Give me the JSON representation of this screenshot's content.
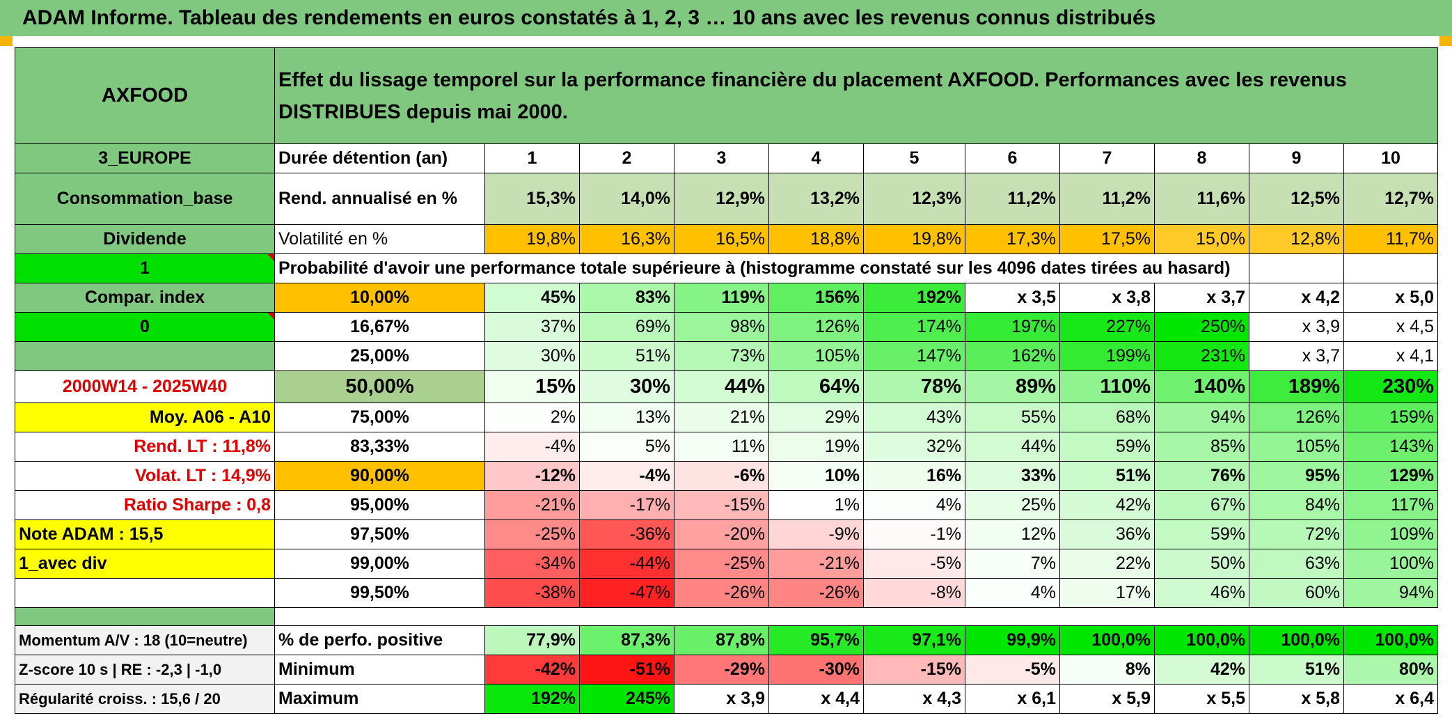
{
  "title": "ADAM Informe. Tableau des rendements en euros constatés à 1, 2, 3 … 10 ans avec les revenus connus distribués",
  "colors": {
    "header_green": "#80c880",
    "bright_green": "#00e000",
    "yellow": "#ffff00",
    "orange": "#ffc000",
    "pale_green": "#c6e0b4",
    "red_text": "#e00000"
  },
  "header": {
    "name": "AXFOOD",
    "description": "Effet du lissage temporel sur la performance financière du placement AXFOOD. Performances avec les revenus DISTRIBUES depuis mai 2000."
  },
  "left": {
    "zone": "3_EUROPE",
    "sector": "Consommation_base",
    "div_type": "Dividende",
    "flag1": "1",
    "compar": "Compar. index",
    "flag0": "0",
    "period": "2000W14 - 2025W40",
    "moy": "Moy. A06 - A10",
    "rend_lt": "Rend. LT :    11,8%",
    "volat_lt": "Volat. LT :    14,9%",
    "sharpe": "Ratio Sharpe :    0,8",
    "note": "Note ADAM : 15,5",
    "avec_div": "1_avec div",
    "momentum": "Momentum A/V : 18 (10=neutre)",
    "zscore": "Z-score 10 s | RE : -2,3 | -1,0",
    "regularite": "Régularité croiss. : 15,6 / 20"
  },
  "labels": {
    "duree": "Durée détention (an)",
    "rend": "Rend. annualisé en %",
    "volat": "Volatilité en %",
    "proba": "Probabilité d'avoir une performance totale supérieure à (histogramme constaté sur les 4096 dates tirées au hasard)",
    "positive": "% de perfo. positive",
    "minimum": "Minimum",
    "maximum": "Maximum"
  },
  "years": [
    "1",
    "2",
    "3",
    "4",
    "5",
    "6",
    "7",
    "8",
    "9",
    "10"
  ],
  "rend": [
    "15,3%",
    "14,0%",
    "12,9%",
    "13,2%",
    "12,3%",
    "11,2%",
    "11,2%",
    "11,6%",
    "12,5%",
    "12,7%"
  ],
  "volat": [
    "19,8%",
    "16,3%",
    "16,5%",
    "18,8%",
    "19,8%",
    "17,3%",
    "17,5%",
    "15,0%",
    "12,8%",
    "11,7%"
  ],
  "probability_rows": [
    {
      "p": "10,00%",
      "values": [
        "45%",
        "83%",
        "119%",
        "156%",
        "192%",
        "x 3,5",
        "x 3,8",
        "x 3,7",
        "x 4,2",
        "x 5,0"
      ]
    },
    {
      "p": "16,67%",
      "values": [
        "37%",
        "69%",
        "98%",
        "126%",
        "174%",
        "197%",
        "227%",
        "250%",
        "x 3,9",
        "x 4,5"
      ]
    },
    {
      "p": "25,00%",
      "values": [
        "30%",
        "51%",
        "73%",
        "105%",
        "147%",
        "162%",
        "199%",
        "231%",
        "x 3,7",
        "x 4,1"
      ]
    },
    {
      "p": "50,00%",
      "values": [
        "15%",
        "30%",
        "44%",
        "64%",
        "78%",
        "89%",
        "110%",
        "140%",
        "189%",
        "230%"
      ]
    },
    {
      "p": "75,00%",
      "values": [
        "2%",
        "13%",
        "21%",
        "29%",
        "43%",
        "55%",
        "68%",
        "94%",
        "126%",
        "159%"
      ]
    },
    {
      "p": "83,33%",
      "values": [
        "-4%",
        "5%",
        "11%",
        "19%",
        "32%",
        "44%",
        "59%",
        "85%",
        "105%",
        "143%"
      ]
    },
    {
      "p": "90,00%",
      "values": [
        "-12%",
        "-4%",
        "-6%",
        "10%",
        "16%",
        "33%",
        "51%",
        "76%",
        "95%",
        "129%"
      ]
    },
    {
      "p": "95,00%",
      "values": [
        "-21%",
        "-17%",
        "-15%",
        "1%",
        "4%",
        "25%",
        "42%",
        "67%",
        "84%",
        "117%"
      ]
    },
    {
      "p": "97,50%",
      "values": [
        "-25%",
        "-36%",
        "-20%",
        "-9%",
        "-1%",
        "12%",
        "36%",
        "59%",
        "72%",
        "109%"
      ]
    },
    {
      "p": "99,00%",
      "values": [
        "-34%",
        "-44%",
        "-25%",
        "-21%",
        "-5%",
        "7%",
        "22%",
        "50%",
        "63%",
        "100%"
      ]
    },
    {
      "p": "99,50%",
      "values": [
        "-38%",
        "-47%",
        "-26%",
        "-26%",
        "-8%",
        "4%",
        "17%",
        "46%",
        "60%",
        "94%"
      ]
    }
  ],
  "positive": [
    "77,9%",
    "87,3%",
    "87,8%",
    "95,7%",
    "97,1%",
    "99,9%",
    "100,0%",
    "100,0%",
    "100,0%",
    "100,0%"
  ],
  "minimum": [
    "-42%",
    "-51%",
    "-29%",
    "-30%",
    "-15%",
    "-5%",
    "8%",
    "42%",
    "51%",
    "80%"
  ],
  "maximum": [
    "192%",
    "245%",
    "x 3,9",
    "x 4,4",
    "x 4,3",
    "x 6,1",
    "x 5,9",
    "x 5,5",
    "x 5,8",
    "x 6,4"
  ]
}
